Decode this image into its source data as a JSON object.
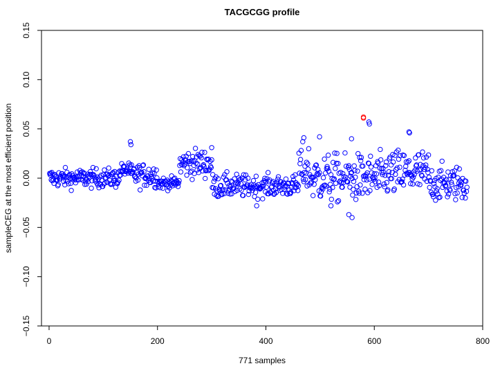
{
  "chart_data": {
    "type": "scatter",
    "title": "TACGCGG profile",
    "xlabel": "771 samples",
    "ylabel": "sampleCEG at the most efficient position",
    "xlim": [
      -14,
      800
    ],
    "ylim": [
      -0.15,
      0.15
    ],
    "x_ticks": [
      0,
      200,
      400,
      600,
      800
    ],
    "y_ticks": [
      -0.15,
      -0.1,
      -0.05,
      0.0,
      0.05,
      0.1,
      0.15
    ],
    "x_tick_labels": [
      "0",
      "200",
      "400",
      "600",
      "800"
    ],
    "y_tick_labels": [
      "−0.15",
      "−0.10",
      "−0.05",
      "0.00",
      "0.05",
      "0.10",
      "0.15"
    ],
    "grid": false,
    "legend": "none",
    "point_color": "#0000ff",
    "highlight_color": "#ff0000",
    "highlight_point": {
      "x": 580,
      "y": 0.062
    },
    "n_samples": 771,
    "segments": [
      {
        "x_start": 1,
        "x_end": 130,
        "center": 0.0,
        "spread": 0.008
      },
      {
        "x_start": 131,
        "x_end": 150,
        "center": 0.008,
        "spread": 0.006
      },
      {
        "x_start": 151,
        "x_end": 200,
        "center": 0.003,
        "spread": 0.01
      },
      {
        "x_start": 201,
        "x_end": 240,
        "center": -0.005,
        "spread": 0.005
      },
      {
        "x_start": 241,
        "x_end": 300,
        "center": 0.015,
        "spread": 0.012
      },
      {
        "x_start": 301,
        "x_end": 360,
        "center": -0.008,
        "spread": 0.01
      },
      {
        "x_start": 361,
        "x_end": 460,
        "center": -0.008,
        "spread": 0.009
      },
      {
        "x_start": 461,
        "x_end": 480,
        "center": 0.01,
        "spread": 0.02
      },
      {
        "x_start": 481,
        "x_end": 620,
        "center": 0.0,
        "spread": 0.02
      },
      {
        "x_start": 621,
        "x_end": 700,
        "center": 0.005,
        "spread": 0.02
      },
      {
        "x_start": 701,
        "x_end": 771,
        "center": -0.005,
        "spread": 0.015
      }
    ],
    "notable_points": [
      {
        "x": 150,
        "y": 0.037
      },
      {
        "x": 151,
        "y": 0.034
      },
      {
        "x": 300,
        "y": 0.031
      },
      {
        "x": 558,
        "y": 0.04
      },
      {
        "x": 590,
        "y": 0.057
      },
      {
        "x": 591,
        "y": 0.055
      },
      {
        "x": 664,
        "y": 0.047
      },
      {
        "x": 665,
        "y": 0.046
      },
      {
        "x": 499,
        "y": 0.042
      },
      {
        "x": 470,
        "y": 0.041
      },
      {
        "x": 553,
        "y": -0.037
      },
      {
        "x": 559,
        "y": -0.04
      },
      {
        "x": 383,
        "y": -0.028
      },
      {
        "x": 520,
        "y": -0.028
      }
    ]
  }
}
